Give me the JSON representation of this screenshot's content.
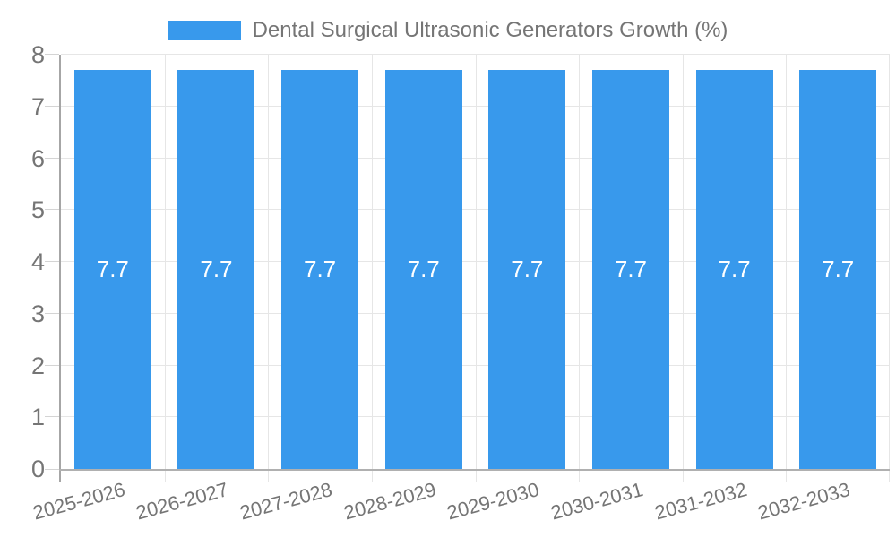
{
  "legend": {
    "label": "Dental Surgical Ultrasonic Generators Growth (%)"
  },
  "chart_data": {
    "type": "bar",
    "title": "Dental Surgical Ultrasonic Generators Growth (%)",
    "categories": [
      "2025-2026",
      "2026-2027",
      "2027-2028",
      "2028-2029",
      "2029-2030",
      "2030-2031",
      "2031-2032",
      "2032-2033"
    ],
    "series": [
      {
        "name": "Dental Surgical Ultrasonic Generators Growth (%)",
        "values": [
          7.7,
          7.7,
          7.7,
          7.7,
          7.7,
          7.7,
          7.7,
          7.7
        ]
      }
    ],
    "value_labels": [
      "7.7",
      "7.7",
      "7.7",
      "7.7",
      "7.7",
      "7.7",
      "7.7",
      "7.7"
    ],
    "xlabel": "",
    "ylabel": "",
    "ylim": [
      0,
      8
    ],
    "yticks": [
      0,
      1,
      2,
      3,
      4,
      5,
      6,
      7,
      8
    ],
    "grid": true,
    "legend_position": "top",
    "colors": {
      "bar": "#3899ec",
      "bar_value_label": "#ffffff",
      "axis_text": "#757575",
      "grid_line": "#e6e6e6",
      "axis_line": "#b0b0b0",
      "y_axis_line": "#a6a6a6",
      "tick": "#d4d4d4"
    }
  }
}
